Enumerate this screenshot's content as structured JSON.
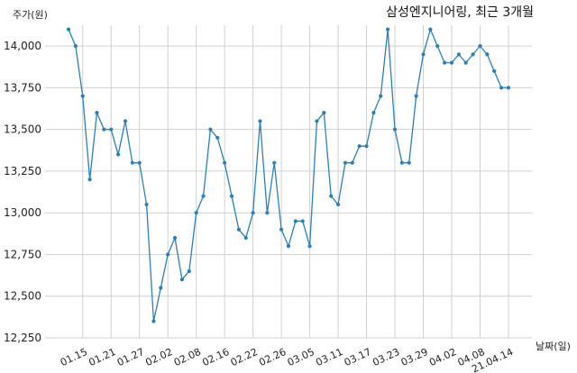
{
  "chart_data": {
    "type": "line",
    "title": "삼성엔지니어링, 최근 3개월",
    "ylabel": "주가(원)",
    "xlabel": "날짜(일)",
    "ylim": [
      12250,
      14125
    ],
    "yticks": [
      12250,
      12500,
      12750,
      13000,
      13250,
      13500,
      13750,
      14000
    ],
    "ytick_labels": [
      "12,250",
      "12,500",
      "12,750",
      "13,000",
      "13,250",
      "13,500",
      "13,750",
      "14,000"
    ],
    "xtick_labels": [
      "01.15",
      "01.21",
      "01.27",
      "02.02",
      "02.08",
      "02.16",
      "02.22",
      "02.26",
      "03.05",
      "03.11",
      "03.17",
      "03.23",
      "03.29",
      "04.02",
      "04.08",
      "21.04.14"
    ],
    "xtick_indices": [
      2,
      6,
      10,
      14,
      18,
      22,
      26,
      30,
      34,
      38,
      42,
      46,
      50,
      54,
      58,
      62
    ],
    "grid": true,
    "color": "#2e7fb0",
    "series": [
      {
        "values": [
          14100,
          14000,
          13700,
          13200,
          13600,
          13500,
          13500,
          13350,
          13550,
          13300,
          13300,
          13050,
          12350,
          12550,
          12750,
          12850,
          12600,
          12650,
          13000,
          13100,
          13500,
          13450,
          13300,
          13100,
          12900,
          12850,
          13000,
          13550,
          13000,
          13300,
          12900,
          12800,
          12950,
          12950,
          12800,
          13550,
          13600,
          13100,
          13050,
          13300,
          13300,
          13400,
          13400,
          13600,
          13700,
          14100,
          13500,
          13300,
          13300,
          13700,
          13950,
          14100,
          14000,
          13900,
          13900,
          13950,
          13900,
          13950,
          14000,
          13950,
          13850,
          13750,
          13750
        ]
      }
    ]
  }
}
